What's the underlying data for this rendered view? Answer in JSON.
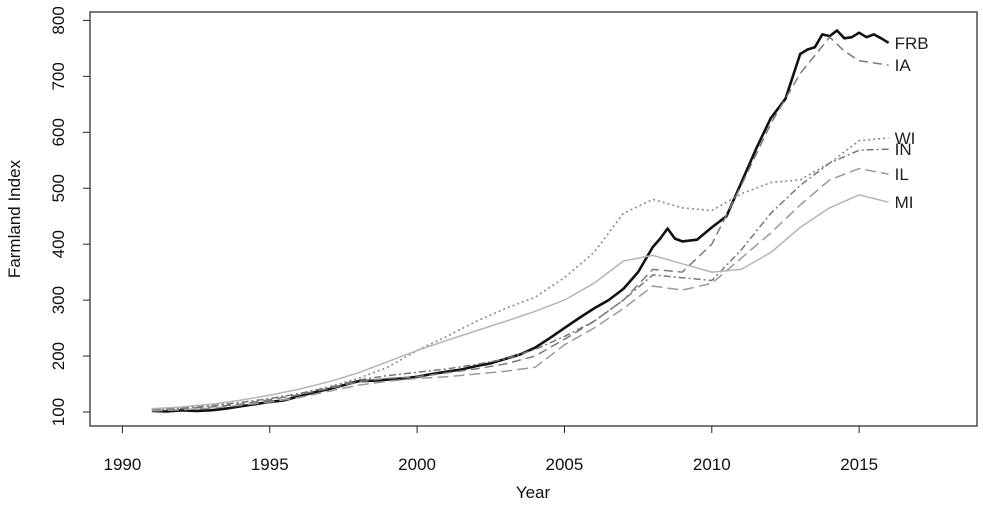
{
  "chart_data": {
    "type": "line",
    "title": "",
    "xlabel": "Year",
    "ylabel": "Farmland Index",
    "xlim": [
      1988.9,
      2019
    ],
    "ylim": [
      75,
      815
    ],
    "xticks": [
      1990,
      1995,
      2000,
      2005,
      2010,
      2015
    ],
    "yticks": [
      100,
      200,
      300,
      400,
      500,
      600,
      700,
      800
    ],
    "xtick_labels": [
      "1990",
      "1995",
      "2000",
      "2005",
      "2010",
      "2015"
    ],
    "ytick_labels": [
      "100",
      "200",
      "300",
      "400",
      "500",
      "600",
      "700",
      "800"
    ],
    "grid": false,
    "legend": "labels at line ends",
    "series": [
      {
        "name": "FRB",
        "color": "#111111",
        "dash": "solid",
        "width": 2.6,
        "x": [
          1991,
          1991.5,
          1992,
          1992.5,
          1993,
          1993.5,
          1994,
          1994.5,
          1995,
          1995.5,
          1996,
          1996.5,
          1997,
          1997.5,
          1998,
          1998.5,
          1999,
          1999.5,
          2000,
          2000.5,
          2001,
          2001.5,
          2002,
          2002.5,
          2003,
          2003.5,
          2004,
          2004.5,
          2005,
          2005.5,
          2006,
          2006.5,
          2007,
          2007.5,
          2008,
          2008.25,
          2008.5,
          2008.75,
          2009,
          2009.5,
          2010,
          2010.5,
          2011,
          2011.5,
          2012,
          2012.5,
          2013,
          2013.25,
          2013.5,
          2013.75,
          2014,
          2014.25,
          2014.5,
          2014.75,
          2015,
          2015.25,
          2015.5,
          2015.75,
          2016
        ],
        "y": [
          102,
          101,
          103,
          102,
          103,
          106,
          110,
          114,
          118,
          121,
          128,
          135,
          141,
          148,
          155,
          156,
          158,
          160,
          163,
          168,
          172,
          176,
          182,
          187,
          195,
          203,
          215,
          232,
          250,
          268,
          285,
          300,
          320,
          350,
          395,
          410,
          428,
          410,
          405,
          408,
          430,
          450,
          510,
          570,
          625,
          660,
          740,
          748,
          752,
          775,
          772,
          782,
          768,
          770,
          778,
          770,
          775,
          768,
          760
        ]
      },
      {
        "name": "IA",
        "color": "#7a7a7a",
        "dash": "9,5",
        "width": 1.5,
        "x": [
          1991,
          1992,
          1993,
          1994,
          1995,
          1996,
          1997,
          1998,
          1999,
          2000,
          2001,
          2002,
          2003,
          2004,
          2005,
          2006,
          2007,
          2008,
          2009,
          2010,
          2011,
          2012,
          2013,
          2014,
          2014.5,
          2015,
          2016
        ],
        "y": [
          104,
          106,
          109,
          114,
          122,
          131,
          142,
          154,
          160,
          163,
          170,
          177,
          186,
          200,
          230,
          262,
          300,
          355,
          350,
          400,
          505,
          615,
          705,
          770,
          745,
          728,
          720
        ]
      },
      {
        "name": "WI",
        "color": "#8a8a8a",
        "dash": "2,3",
        "width": 1.6,
        "x": [
          1991,
          1992,
          1993,
          1994,
          1995,
          1996,
          1997,
          1998,
          1999,
          2000,
          2001,
          2002,
          2003,
          2004,
          2005,
          2006,
          2007,
          2008,
          2009,
          2010,
          2011,
          2012,
          2013,
          2014,
          2015,
          2016
        ],
        "y": [
          106,
          108,
          112,
          117,
          124,
          133,
          145,
          160,
          180,
          210,
          235,
          262,
          285,
          305,
          340,
          385,
          455,
          480,
          465,
          460,
          490,
          510,
          515,
          545,
          585,
          590
        ]
      },
      {
        "name": "IN",
        "color": "#777777",
        "dash": "7,3,2,3",
        "width": 1.5,
        "x": [
          1991,
          1992,
          1993,
          1994,
          1995,
          1996,
          1997,
          1998,
          1999,
          2000,
          2001,
          2002,
          2003,
          2004,
          2005,
          2006,
          2007,
          2008,
          2009,
          2010,
          2011,
          2012,
          2013,
          2014,
          2015,
          2016
        ],
        "y": [
          104,
          107,
          111,
          117,
          124,
          133,
          144,
          157,
          165,
          171,
          177,
          185,
          195,
          212,
          235,
          262,
          300,
          345,
          340,
          335,
          390,
          455,
          505,
          545,
          568,
          570
        ]
      },
      {
        "name": "IL",
        "color": "#9a9a9a",
        "dash": "11,5",
        "width": 1.5,
        "x": [
          1991,
          1992,
          1993,
          1994,
          1995,
          1996,
          1997,
          1998,
          1999,
          2000,
          2001,
          2002,
          2003,
          2004,
          2005,
          2006,
          2007,
          2008,
          2009,
          2010,
          2011,
          2012,
          2013,
          2014,
          2015,
          2016
        ],
        "y": [
          102,
          104,
          107,
          112,
          118,
          126,
          137,
          148,
          155,
          160,
          163,
          168,
          173,
          180,
          220,
          250,
          285,
          325,
          318,
          330,
          375,
          420,
          470,
          515,
          535,
          525
        ]
      },
      {
        "name": "MI",
        "color": "#b5b5b5",
        "dash": "solid",
        "width": 1.5,
        "x": [
          1991,
          1992,
          1993,
          1994,
          1995,
          1996,
          1997,
          1998,
          1999,
          2000,
          2001,
          2002,
          2003,
          2004,
          2005,
          2006,
          2007,
          2008,
          2009,
          2010,
          2011,
          2012,
          2013,
          2014,
          2015,
          2016
        ],
        "y": [
          106,
          109,
          114,
          121,
          130,
          141,
          154,
          170,
          190,
          210,
          228,
          245,
          262,
          280,
          300,
          330,
          370,
          380,
          365,
          350,
          355,
          385,
          430,
          465,
          488,
          475
        ]
      }
    ]
  }
}
